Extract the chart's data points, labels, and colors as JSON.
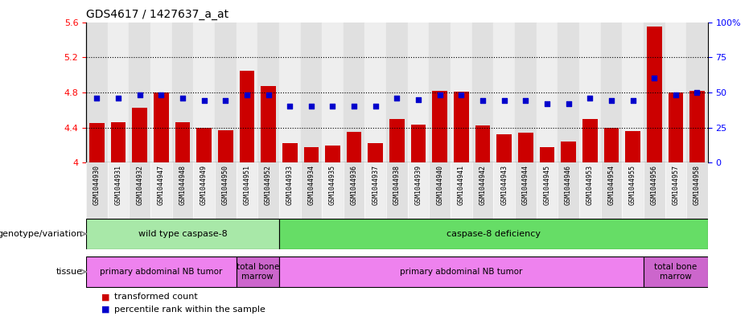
{
  "title": "GDS4617 / 1427637_a_at",
  "samples": [
    "GSM1044930",
    "GSM1044931",
    "GSM1044932",
    "GSM1044947",
    "GSM1044948",
    "GSM1044949",
    "GSM1044950",
    "GSM1044951",
    "GSM1044952",
    "GSM1044933",
    "GSM1044934",
    "GSM1044935",
    "GSM1044936",
    "GSM1044937",
    "GSM1044938",
    "GSM1044939",
    "GSM1044940",
    "GSM1044941",
    "GSM1044942",
    "GSM1044943",
    "GSM1044944",
    "GSM1044945",
    "GSM1044946",
    "GSM1044953",
    "GSM1044954",
    "GSM1044955",
    "GSM1044956",
    "GSM1044957",
    "GSM1044958"
  ],
  "bar_values": [
    4.45,
    4.46,
    4.63,
    4.8,
    4.46,
    4.4,
    4.37,
    5.05,
    4.87,
    4.22,
    4.18,
    4.2,
    4.35,
    4.22,
    4.5,
    4.43,
    4.82,
    4.81,
    4.42,
    4.32,
    4.34,
    4.18,
    4.24,
    4.5,
    4.4,
    4.36,
    5.55,
    4.8,
    4.82
  ],
  "percentile_values": [
    46,
    46,
    48,
    48,
    46,
    44,
    44,
    48,
    48,
    40,
    40,
    40,
    40,
    40,
    46,
    45,
    48,
    48,
    44,
    44,
    44,
    42,
    42,
    46,
    44,
    44,
    60,
    48,
    50
  ],
  "bar_color": "#cc0000",
  "dot_color": "#0000cc",
  "ylim_left": [
    4.0,
    5.6
  ],
  "ylim_right": [
    0,
    100
  ],
  "yticks_left": [
    4.0,
    4.4,
    4.8,
    5.2,
    5.6
  ],
  "yticks_right": [
    0,
    25,
    50,
    75,
    100
  ],
  "ytick_labels_left": [
    "4",
    "4.4",
    "4.8",
    "5.2",
    "5.6"
  ],
  "ytick_labels_right": [
    "0",
    "25",
    "50",
    "75",
    "100%"
  ],
  "hlines": [
    4.4,
    4.8,
    5.2
  ],
  "genotype_groups": [
    {
      "label": "wild type caspase-8",
      "start": 0,
      "end": 9,
      "color": "#a8e8a8"
    },
    {
      "label": "caspase-8 deficiency",
      "start": 9,
      "end": 29,
      "color": "#66dd66"
    }
  ],
  "tissue_groups": [
    {
      "label": "primary abdominal NB tumor",
      "start": 0,
      "end": 7,
      "color": "#ee82ee"
    },
    {
      "label": "total bone\nmarrow",
      "start": 7,
      "end": 9,
      "color": "#cc66cc"
    },
    {
      "label": "primary abdominal NB tumor",
      "start": 9,
      "end": 26,
      "color": "#ee82ee"
    },
    {
      "label": "total bone\nmarrow",
      "start": 26,
      "end": 29,
      "color": "#cc66cc"
    }
  ],
  "legend_items": [
    {
      "color": "#cc0000",
      "label": "transformed count"
    },
    {
      "color": "#0000cc",
      "label": "percentile rank within the sample"
    }
  ],
  "genotype_label": "genotype/variation",
  "tissue_label": "tissue",
  "bg_color_even": "#e0e0e0",
  "bg_color_odd": "#eeeeee"
}
